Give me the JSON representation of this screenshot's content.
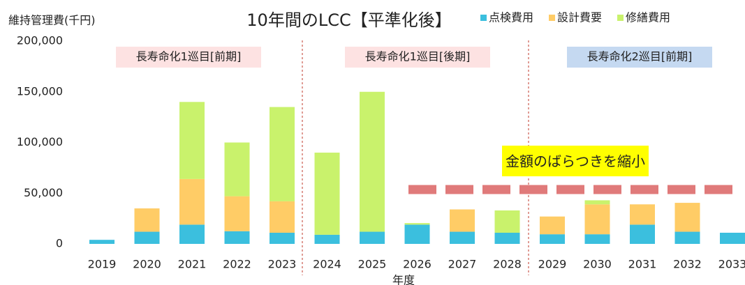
{
  "chart_data": {
    "type": "stacked_bar",
    "title": "10年間のLCC【平準化後】",
    "y_label": "維持管理費(千円)",
    "x_label": "年度",
    "categories": [
      "2019",
      "2020",
      "2021",
      "2022",
      "2023",
      "2024",
      "2025",
      "2026",
      "2027",
      "2028",
      "2029",
      "2030",
      "2031",
      "2032",
      "2033"
    ],
    "series": [
      {
        "name": "点検費用",
        "color": "#3bbfde",
        "values": [
          4000,
          12000,
          19000,
          12500,
          11000,
          9000,
          12000,
          19000,
          12000,
          11000,
          9500,
          9500,
          19000,
          12000,
          11000
        ]
      },
      {
        "name": "設計費要",
        "color": "#ffcc66",
        "values": [
          0,
          23000,
          45000,
          34500,
          31000,
          0,
          0,
          0,
          22000,
          0,
          17500,
          29500,
          20000,
          28500,
          0
        ]
      },
      {
        "name": "修繕費用",
        "color": "#c9f26c",
        "values": [
          0,
          0,
          76000,
          53000,
          93000,
          81000,
          138000,
          1500,
          0,
          22000,
          0,
          4000,
          0,
          0,
          0
        ]
      }
    ],
    "ylim": [
      0,
      200000
    ],
    "yticks": [
      0,
      {
        "value": 50000,
        "label": "50,000"
      },
      {
        "value": 100000,
        "label": "100,000"
      },
      {
        "value": 150000,
        "label": "150,000"
      },
      {
        "value": 200000,
        "label": "200,000"
      }
    ],
    "grid": false,
    "legend": "top",
    "annotations": {
      "sections": [
        "長寿命化1巡目[前期]",
        "長寿命化1巡目[後期]",
        "長寿命化2巡目[前期]"
      ],
      "callout": "金額のばらつきを縮小"
    }
  }
}
